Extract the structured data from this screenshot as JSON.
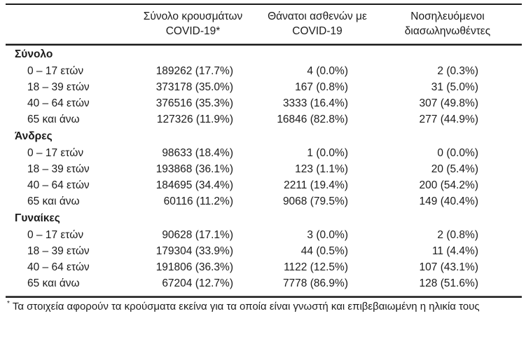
{
  "colors": {
    "background": "#ffffff",
    "text": "#1b1b1b",
    "rule_dark": "#161616",
    "rule_light": "#8f8f8f"
  },
  "table": {
    "headers": [
      {
        "line1": "Σύνολο κρουσμάτων",
        "line2": "COVID-19*"
      },
      {
        "line1": "Θάνατοι ασθενών με",
        "line2": "COVID-19"
      },
      {
        "line1": "Νοσηλευόμενοι",
        "line2": "διασωληνωθέντες"
      }
    ],
    "sections": [
      {
        "label": "Σύνολο",
        "rows": [
          {
            "label": "0 – 17 ετών",
            "cases": "189262 (17.7%)",
            "deaths": "4 (0.0%)",
            "intubated": "2 (0.3%)"
          },
          {
            "label": "18 – 39 ετών",
            "cases": "373178 (35.0%)",
            "deaths": "167 (0.8%)",
            "intubated": "31 (5.0%)"
          },
          {
            "label": "40 – 64 ετών",
            "cases": "376516 (35.3%)",
            "deaths": "3333 (16.4%)",
            "intubated": "307 (49.8%)"
          },
          {
            "label": "65 και άνω",
            "cases": "127326 (11.9%)",
            "deaths": "16846 (82.8%)",
            "intubated": "277 (44.9%)"
          }
        ]
      },
      {
        "label": "Άνδρες",
        "rows": [
          {
            "label": "0 – 17 ετών",
            "cases": "98633 (18.4%)",
            "deaths": "1 (0.0%)",
            "intubated": "0 (0.0%)"
          },
          {
            "label": "18 – 39 ετών",
            "cases": "193868 (36.1%)",
            "deaths": "123 (1.1%)",
            "intubated": "20 (5.4%)"
          },
          {
            "label": "40 – 64 ετών",
            "cases": "184695 (34.4%)",
            "deaths": "2211 (19.4%)",
            "intubated": "200 (54.2%)"
          },
          {
            "label": "65 και άνω",
            "cases": "60116 (11.2%)",
            "deaths": "9068 (79.5%)",
            "intubated": "149 (40.4%)"
          }
        ]
      },
      {
        "label": "Γυναίκες",
        "rows": [
          {
            "label": "0 – 17 ετών",
            "cases": "90628 (17.1%)",
            "deaths": "3 (0.0%)",
            "intubated": "2 (0.8%)"
          },
          {
            "label": "18 – 39 ετών",
            "cases": "179304 (33.9%)",
            "deaths": "44 (0.5%)",
            "intubated": "11 (4.4%)"
          },
          {
            "label": "40 – 64 ετών",
            "cases": "191806 (36.3%)",
            "deaths": "1122 (12.5%)",
            "intubated": "107 (43.1%)"
          },
          {
            "label": "65 και άνω",
            "cases": "67204 (12.7%)",
            "deaths": "7778 (86.9%)",
            "intubated": "128 (51.6%)"
          }
        ]
      }
    ],
    "footnote": {
      "marker": "*",
      "text": "Τα στοιχεία αφορούν τα κρούσματα εκείνα για τα οποία είναι γνωστή και επιβεβαιωμένη η ηλικία τους"
    }
  }
}
